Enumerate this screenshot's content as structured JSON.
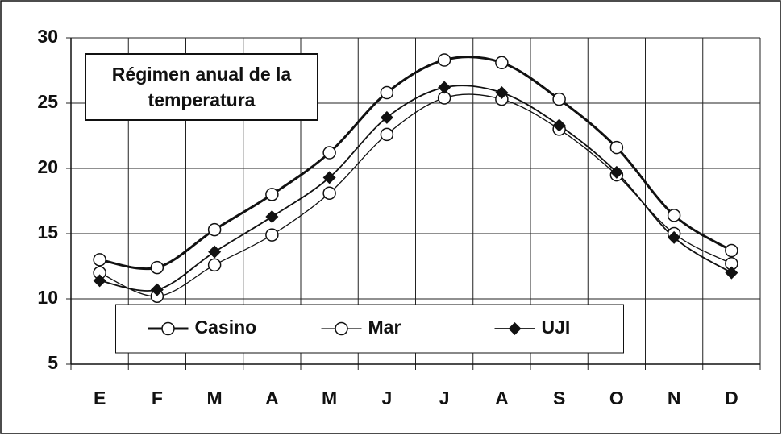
{
  "chart_data": {
    "type": "line",
    "title": "Régimen anual de la temperatura",
    "categories": [
      "E",
      "F",
      "M",
      "A",
      "M",
      "J",
      "J",
      "A",
      "S",
      "O",
      "N",
      "D"
    ],
    "series": [
      {
        "name": "Casino",
        "color": "#111111",
        "marker": "circle",
        "line_width": 3,
        "values": [
          13.0,
          12.4,
          15.3,
          18.0,
          21.2,
          25.8,
          28.3,
          28.1,
          25.3,
          21.6,
          16.4,
          13.7
        ]
      },
      {
        "name": "Mar",
        "color": "#111111",
        "marker": "circle",
        "line_width": 1.3,
        "values": [
          12.0,
          10.2,
          12.6,
          14.9,
          18.1,
          22.6,
          25.4,
          25.3,
          23.0,
          19.5,
          15.0,
          12.7
        ]
      },
      {
        "name": "UJI",
        "color": "#111111",
        "marker": "diamond",
        "line_width": 1.8,
        "values": [
          11.4,
          10.7,
          13.6,
          16.3,
          19.3,
          23.9,
          26.2,
          25.8,
          23.3,
          19.7,
          14.7,
          12.0
        ]
      }
    ],
    "ylim": [
      5,
      30
    ],
    "yticks": [
      5,
      10,
      15,
      20,
      25,
      30
    ],
    "grid": true,
    "legend": "lower center"
  }
}
